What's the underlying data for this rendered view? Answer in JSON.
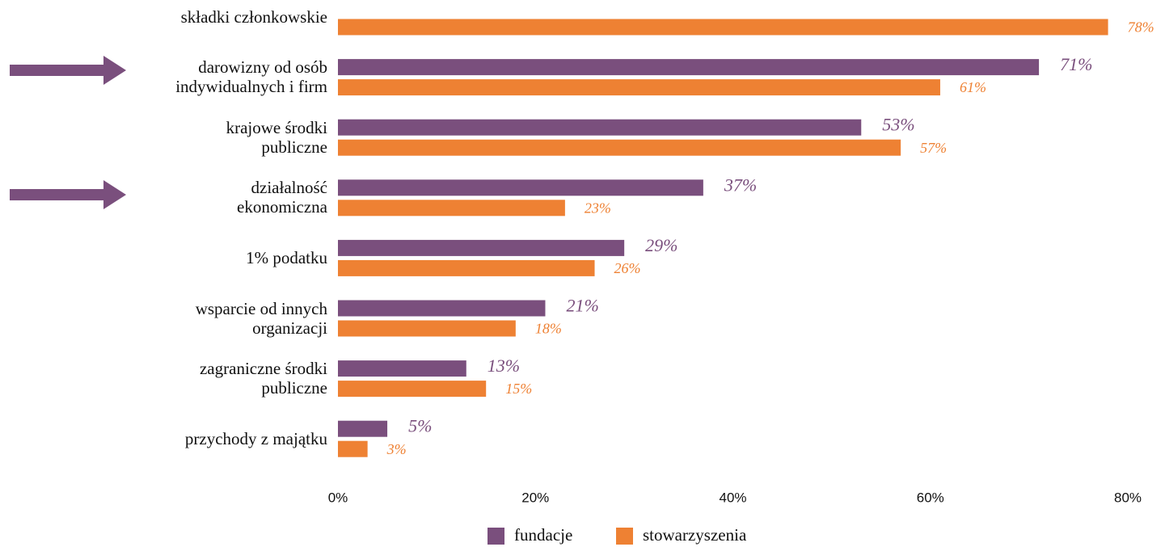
{
  "chart_data": {
    "type": "bar",
    "orientation": "horizontal",
    "categories": [
      "składki członkowskie",
      "darowizny od osób\nindywidualnych i firm",
      "krajowe środki\npubliczne",
      "działalność\nekonomiczna",
      "1% podatku",
      "wsparcie od innych\norganizacji",
      "zagraniczne środki\npubliczne",
      "przychody z majątku"
    ],
    "series": [
      {
        "name": "fundacje",
        "color": "#7a4f7d",
        "values": [
          null,
          71,
          53,
          37,
          29,
          21,
          13,
          5
        ],
        "value_labels": [
          null,
          "71%",
          "53%",
          "37%",
          "29%",
          "21%",
          "13%",
          "5%"
        ]
      },
      {
        "name": "stowarzyszenia",
        "color": "#ee8133",
        "values": [
          78,
          61,
          57,
          23,
          26,
          18,
          15,
          3
        ],
        "value_labels": [
          "78%",
          "61%",
          "57%",
          "23%",
          "26%",
          "18%",
          "15%",
          "3%"
        ]
      }
    ],
    "xlim": [
      0,
      80
    ],
    "xticks": [
      {
        "value": 0,
        "label": "0%"
      },
      {
        "value": 20,
        "label": "20%"
      },
      {
        "value": 40,
        "label": "40%"
      },
      {
        "value": 60,
        "label": "60%"
      },
      {
        "value": 80,
        "label": "80%"
      }
    ],
    "legend": "bottom"
  }
}
